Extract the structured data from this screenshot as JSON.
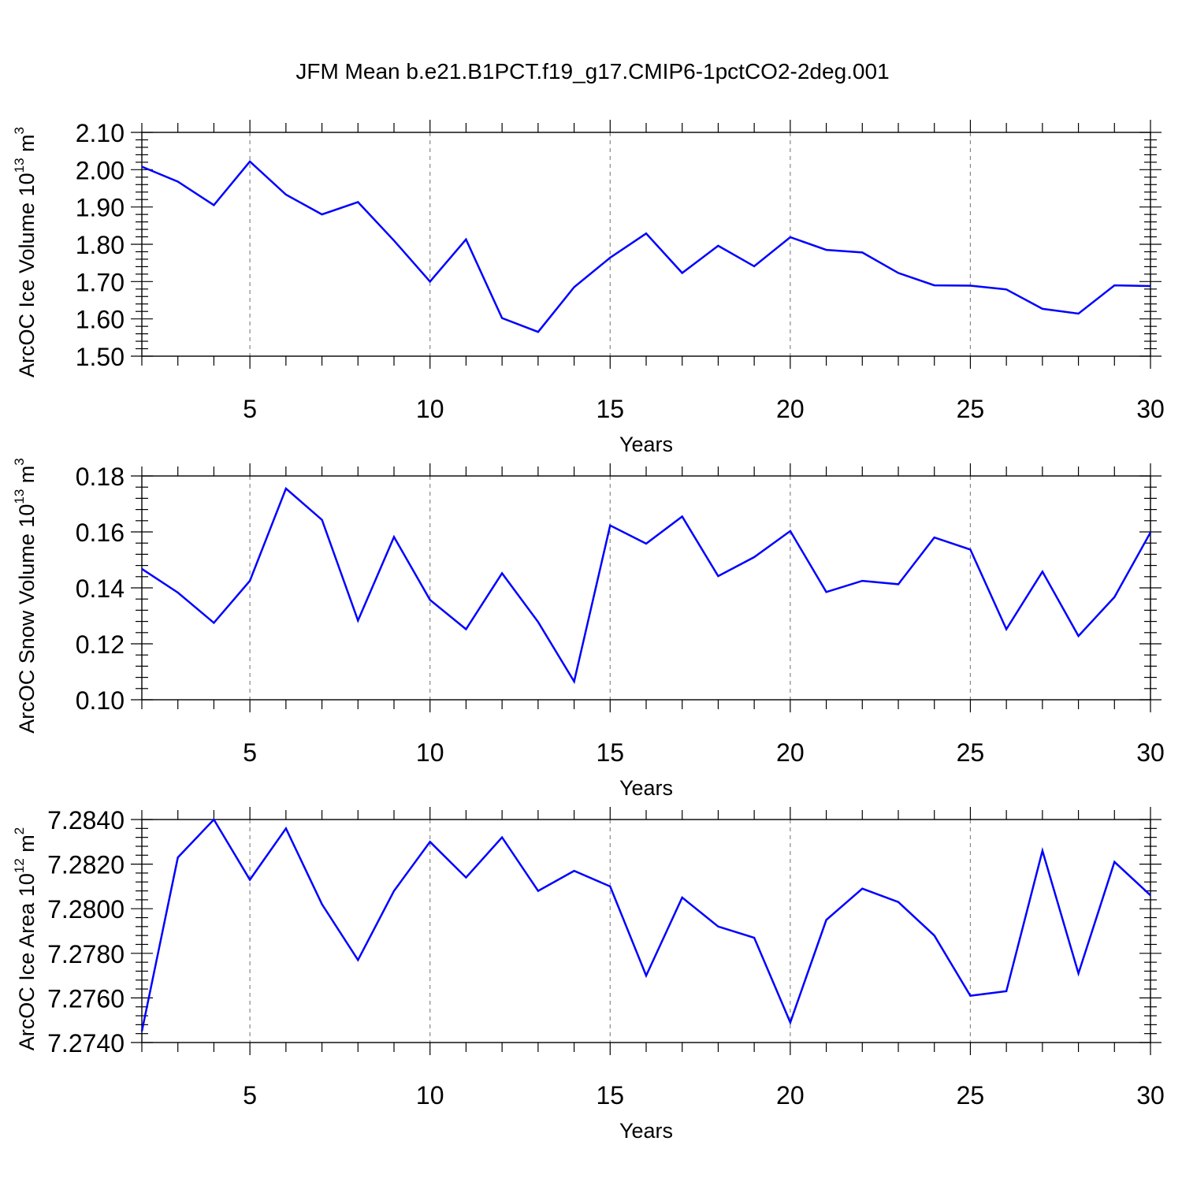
{
  "title": "JFM Mean b.e21.B1PCT.f19_g17.CMIP6-1pctCO2-2deg.001",
  "line_color": "#0000ff",
  "chart_data": [
    {
      "type": "line",
      "xlabel": "Years",
      "ylabel": {
        "text": "ArcOC Ice Volume 10",
        "sup1": "13",
        "mid": " m",
        "sup2": "3"
      },
      "xlim": [
        2,
        30
      ],
      "ylim": [
        1.5,
        2.1
      ],
      "grid": "vertical dashed at major x ticks",
      "x_ticks": [
        5,
        10,
        15,
        20,
        25,
        30
      ],
      "x_tick_labels": [
        "5",
        "10",
        "15",
        "20",
        "25",
        "30"
      ],
      "y_ticks": [
        1.5,
        1.6,
        1.7,
        1.8,
        1.9,
        2.0,
        2.1
      ],
      "y_tick_labels": [
        "1.50",
        "1.60",
        "1.70",
        "1.80",
        "1.90",
        "2.00",
        "2.10"
      ],
      "x": [
        2,
        3,
        4,
        5,
        6,
        7,
        8,
        9,
        10,
        11,
        12,
        13,
        14,
        15,
        16,
        17,
        18,
        19,
        20,
        21,
        22,
        23,
        24,
        25,
        26,
        27,
        28,
        29,
        30
      ],
      "values": [
        2.008,
        1.968,
        1.905,
        2.022,
        1.933,
        1.88,
        1.913,
        1.81,
        1.7,
        1.813,
        1.602,
        1.565,
        1.685,
        1.764,
        1.829,
        1.723,
        1.796,
        1.741,
        1.819,
        1.785,
        1.778,
        1.723,
        1.69,
        1.689,
        1.679,
        1.627,
        1.614,
        1.69,
        1.688
      ]
    },
    {
      "type": "line",
      "xlabel": "Years",
      "ylabel": {
        "text": "ArcOC Snow Volume 10",
        "sup1": "13",
        "mid": " m",
        "sup2": "3"
      },
      "xlim": [
        2,
        30
      ],
      "ylim": [
        0.1,
        0.18
      ],
      "grid": "vertical dashed at major x ticks",
      "x_ticks": [
        5,
        10,
        15,
        20,
        25,
        30
      ],
      "x_tick_labels": [
        "5",
        "10",
        "15",
        "20",
        "25",
        "30"
      ],
      "y_ticks": [
        0.1,
        0.12,
        0.14,
        0.16,
        0.18
      ],
      "y_tick_labels": [
        "0.10",
        "0.12",
        "0.14",
        "0.16",
        "0.18"
      ],
      "x": [
        2,
        3,
        4,
        5,
        6,
        7,
        8,
        9,
        10,
        11,
        12,
        13,
        14,
        15,
        16,
        17,
        18,
        19,
        20,
        21,
        22,
        23,
        24,
        25,
        26,
        27,
        28,
        29,
        30
      ],
      "values": [
        0.1468,
        0.1383,
        0.1275,
        0.1425,
        0.1755,
        0.1643,
        0.1283,
        0.1582,
        0.1357,
        0.1252,
        0.1452,
        0.1278,
        0.1065,
        0.1623,
        0.1558,
        0.1655,
        0.1442,
        0.151,
        0.1603,
        0.1385,
        0.1425,
        0.1413,
        0.158,
        0.1537,
        0.1252,
        0.1458,
        0.1228,
        0.1367,
        0.1598
      ]
    },
    {
      "type": "line",
      "xlabel": "Years",
      "ylabel": {
        "text": "ArcOC Ice Area 10",
        "sup1": "12",
        "mid": " m",
        "sup2": "2"
      },
      "xlim": [
        2,
        30
      ],
      "ylim": [
        7.274,
        7.284
      ],
      "grid": "vertical dashed at major x ticks",
      "x_ticks": [
        5,
        10,
        15,
        20,
        25,
        30
      ],
      "x_tick_labels": [
        "5",
        "10",
        "15",
        "20",
        "25",
        "30"
      ],
      "y_ticks": [
        7.274,
        7.276,
        7.278,
        7.28,
        7.282,
        7.284
      ],
      "y_tick_labels": [
        "7.2740",
        "7.2760",
        "7.2780",
        "7.2800",
        "7.2820",
        "7.2840"
      ],
      "x": [
        2,
        3,
        4,
        5,
        6,
        7,
        8,
        9,
        10,
        11,
        12,
        13,
        14,
        15,
        16,
        17,
        18,
        19,
        20,
        21,
        22,
        23,
        24,
        25,
        26,
        27,
        28,
        29,
        30
      ],
      "values": [
        7.2745,
        7.2823,
        7.284,
        7.2813,
        7.2836,
        7.2802,
        7.2777,
        7.2808,
        7.283,
        7.2814,
        7.2832,
        7.2808,
        7.2817,
        7.281,
        7.277,
        7.2805,
        7.2792,
        7.2787,
        7.2749,
        7.2795,
        7.2809,
        7.2803,
        7.2788,
        7.2761,
        7.2763,
        7.2826,
        7.2771,
        7.2821,
        7.2806
      ]
    }
  ]
}
